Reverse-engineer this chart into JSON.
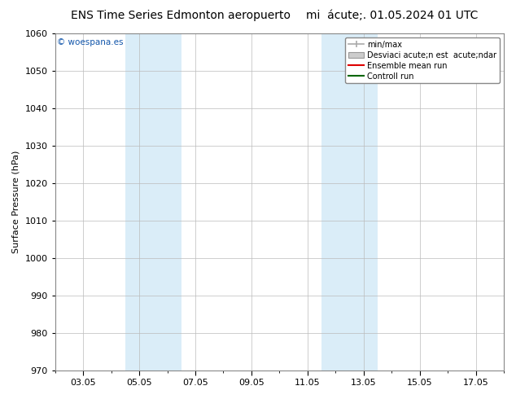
{
  "title_left": "ENS Time Series Edmonton aeropuerto",
  "title_right": "mi  acute;. 01.05.2024 01 UTC",
  "ylabel": "Surface Pressure (hPa)",
  "ylim": [
    970,
    1060
  ],
  "yticks": [
    970,
    980,
    990,
    1000,
    1010,
    1020,
    1030,
    1040,
    1050,
    1060
  ],
  "xticks_labels": [
    "03.05",
    "05.05",
    "07.05",
    "09.05",
    "11.05",
    "13.05",
    "15.05",
    "17.05"
  ],
  "xticks_pos": [
    2,
    4,
    6,
    8,
    10,
    12,
    14,
    16
  ],
  "xlim": [
    1,
    17
  ],
  "shaded_bands": [
    {
      "x_start": 3.5,
      "x_end": 5.5,
      "color": "#daedf8"
    },
    {
      "x_start": 10.5,
      "x_end": 12.5,
      "color": "#daedf8"
    }
  ],
  "legend_labels": [
    "min/max",
    "Desviaci acute;n est  acute;ndar",
    "Ensemble mean run",
    "Controll run"
  ],
  "legend_colors": [
    "#aaaaaa",
    "#cccccc",
    "#dd0000",
    "#006600"
  ],
  "watermark": "© woespana.es",
  "watermark_color": "#1155aa",
  "background_color": "#ffffff",
  "grid_color": "#bbbbbb",
  "title_fontsize": 10,
  "axis_label_fontsize": 8,
  "tick_fontsize": 8,
  "legend_fontsize": 7
}
